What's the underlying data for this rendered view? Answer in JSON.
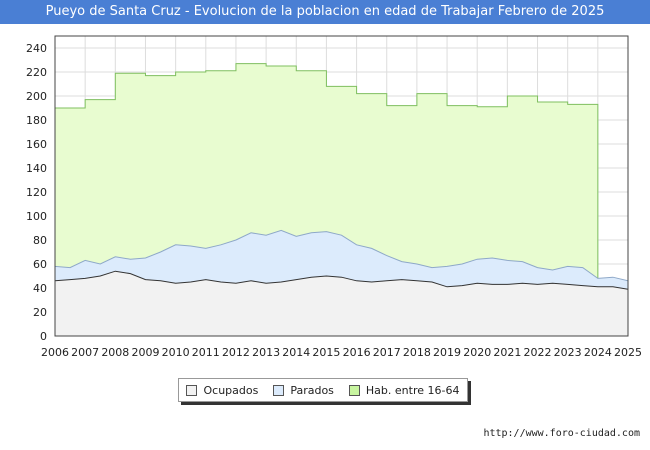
{
  "header": {
    "title": "Pueyo de Santa Cruz - Evolucion de la poblacion en edad de Trabajar Febrero de 2025"
  },
  "footer": {
    "url": "http://www.foro-ciudad.com"
  },
  "colors": {
    "header_bg": "#4a7fd4",
    "hab_fill": "#e8fcd0",
    "hab_line": "#7fbf5f",
    "parados_fill": "#dcebfc",
    "parados_line": "#8ea8c8",
    "ocupados_fill": "#f2f2f2",
    "ocupados_line": "#333333"
  },
  "chart_data": {
    "type": "area",
    "title": "Pueyo de Santa Cruz - Evolucion de la poblacion en edad de Trabajar Febrero de 2025",
    "xlabel": "",
    "ylabel": "",
    "xlim": [
      2006,
      2025
    ],
    "ylim": [
      0,
      250
    ],
    "yticks": [
      0,
      20,
      40,
      60,
      80,
      100,
      120,
      140,
      160,
      180,
      200,
      220,
      240
    ],
    "xticks": [
      "2006",
      "2007",
      "2008",
      "2009",
      "2010",
      "2011",
      "2012",
      "2013",
      "2014",
      "2015",
      "2016",
      "2017",
      "2018",
      "2019",
      "2020",
      "2021",
      "2022",
      "2023",
      "2024",
      "2025"
    ],
    "grid": true,
    "legend_position": "bottom-center",
    "series": [
      {
        "name": "Hab. entre 16-64",
        "kind": "annual-step",
        "years": [
          2006,
          2007,
          2008,
          2009,
          2010,
          2011,
          2012,
          2013,
          2014,
          2015,
          2016,
          2017,
          2018,
          2019,
          2020,
          2021,
          2022,
          2023
        ],
        "values": [
          190,
          197,
          219,
          217,
          220,
          221,
          227,
          225,
          221,
          208,
          202,
          192,
          202,
          192,
          191,
          200,
          195,
          193
        ]
      },
      {
        "name": "Parados",
        "kind": "monthly-upper",
        "x": [
          2006,
          2006.5,
          2007,
          2007.5,
          2008,
          2008.5,
          2009,
          2009.5,
          2010,
          2010.5,
          2011,
          2011.5,
          2012,
          2012.5,
          2013,
          2013.5,
          2014,
          2014.5,
          2015,
          2015.5,
          2016,
          2016.5,
          2017,
          2017.5,
          2018,
          2018.5,
          2019,
          2019.5,
          2020,
          2020.5,
          2021,
          2021.5,
          2022,
          2022.5,
          2023,
          2023.5,
          2024,
          2024.5,
          2025
        ],
        "values": [
          58,
          57,
          63,
          60,
          66,
          64,
          65,
          70,
          76,
          75,
          73,
          76,
          80,
          86,
          84,
          88,
          83,
          86,
          87,
          84,
          76,
          73,
          67,
          62,
          60,
          57,
          58,
          60,
          64,
          65,
          63,
          62,
          57,
          55,
          58,
          57,
          48,
          49,
          46
        ]
      },
      {
        "name": "Ocupados",
        "kind": "monthly",
        "x": [
          2006,
          2006.5,
          2007,
          2007.5,
          2008,
          2008.5,
          2009,
          2009.5,
          2010,
          2010.5,
          2011,
          2011.5,
          2012,
          2012.5,
          2013,
          2013.5,
          2014,
          2014.5,
          2015,
          2015.5,
          2016,
          2016.5,
          2017,
          2017.5,
          2018,
          2018.5,
          2019,
          2019.5,
          2020,
          2020.5,
          2021,
          2021.5,
          2022,
          2022.5,
          2023,
          2023.5,
          2024,
          2024.5,
          2025
        ],
        "values": [
          46,
          47,
          48,
          50,
          54,
          52,
          47,
          46,
          44,
          45,
          47,
          45,
          44,
          46,
          44,
          45,
          47,
          49,
          50,
          49,
          46,
          45,
          46,
          47,
          46,
          45,
          41,
          42,
          44,
          43,
          43,
          44,
          43,
          44,
          43,
          42,
          41,
          41,
          39
        ]
      }
    ]
  },
  "legend": {
    "ocupados": "Ocupados",
    "parados": "Parados",
    "hab": "Hab. entre 16-64"
  }
}
